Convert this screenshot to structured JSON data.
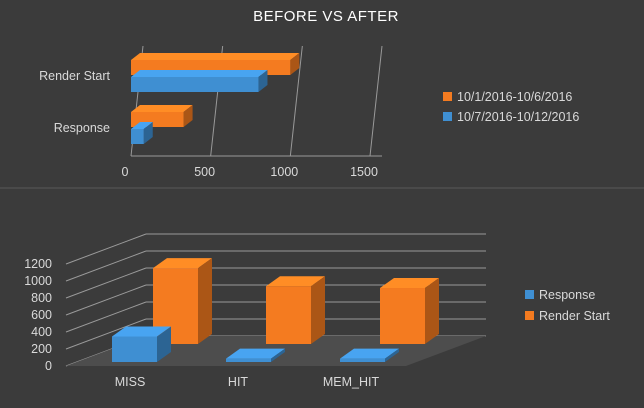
{
  "colors": {
    "background": "#3b3b3b",
    "orange": "#f47b20",
    "blue": "#3f8fd2",
    "text": "#d9d9d9",
    "grid": "#9a9a9a"
  },
  "chart_data": [
    {
      "type": "bar",
      "orientation": "horizontal",
      "style": "3d",
      "title": "BEFORE VS AFTER",
      "categories": [
        "Render Start",
        "Response"
      ],
      "series": [
        {
          "name": "10/1/2016-10/6/2016",
          "color": "#f47b20",
          "values": [
            1000,
            330
          ]
        },
        {
          "name": "10/7/2016-10/12/2016",
          "color": "#3f8fd2",
          "values": [
            800,
            80
          ]
        }
      ],
      "xlim": [
        0,
        1500
      ],
      "xticks": [
        "0",
        "500",
        "1000",
        "1500"
      ],
      "grid": true,
      "legend": "right"
    },
    {
      "type": "bar",
      "orientation": "vertical",
      "style": "3d",
      "title": "",
      "categories": [
        "MISS",
        "HIT",
        "MEM_HIT"
      ],
      "series": [
        {
          "name": "Response",
          "color": "#3f8fd2",
          "values": [
            300,
            40,
            40
          ]
        },
        {
          "name": "Render Start",
          "color": "#f47b20",
          "values": [
            1050,
            800,
            775
          ]
        }
      ],
      "ylim": [
        0,
        1200
      ],
      "yticks": [
        "0",
        "200",
        "400",
        "600",
        "800",
        "1000",
        "1200"
      ],
      "grid": true,
      "legend": "right"
    }
  ]
}
